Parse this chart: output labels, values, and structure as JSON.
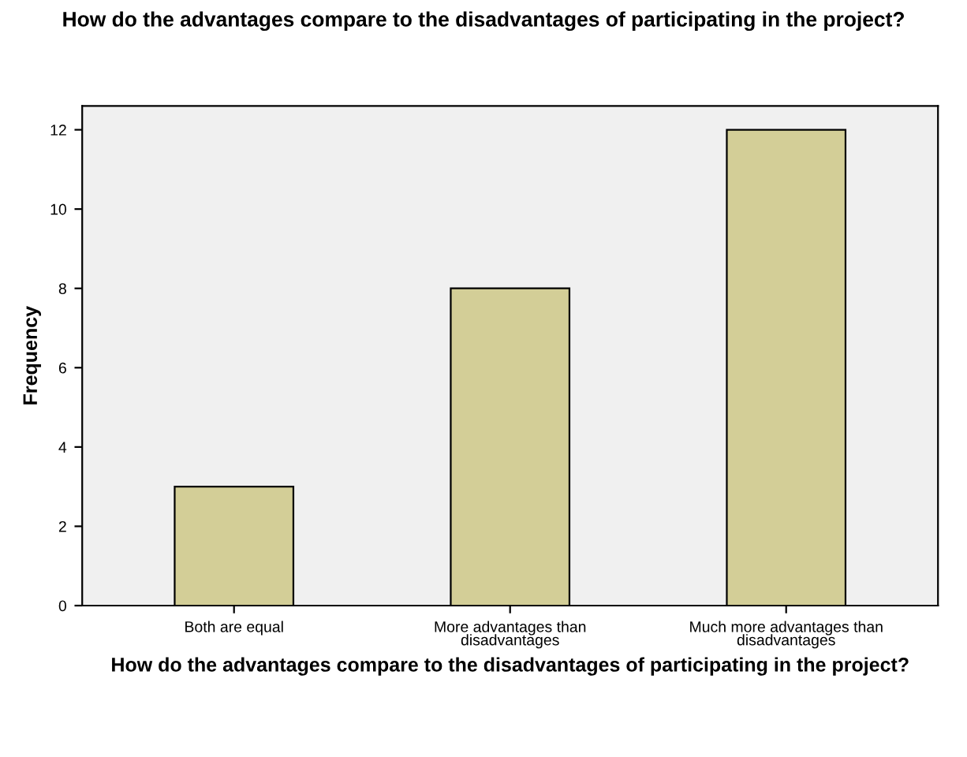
{
  "chart_data": {
    "type": "bar",
    "title": "How do the advantages compare to the disadvantages of participating in the project?",
    "xlabel": "How do the advantages compare to the disadvantages of participating in the project?",
    "ylabel": "Frequency",
    "categories": [
      "Both are equal",
      "More advantages than\ndisadvantages",
      "Much more advantages than\ndisadvantages"
    ],
    "values": [
      3,
      8,
      12
    ],
    "color": "#d3ce97",
    "ylim": [
      0,
      12.6
    ],
    "yticks": [
      0,
      2,
      4,
      6,
      8,
      10,
      12
    ],
    "grid": false
  }
}
